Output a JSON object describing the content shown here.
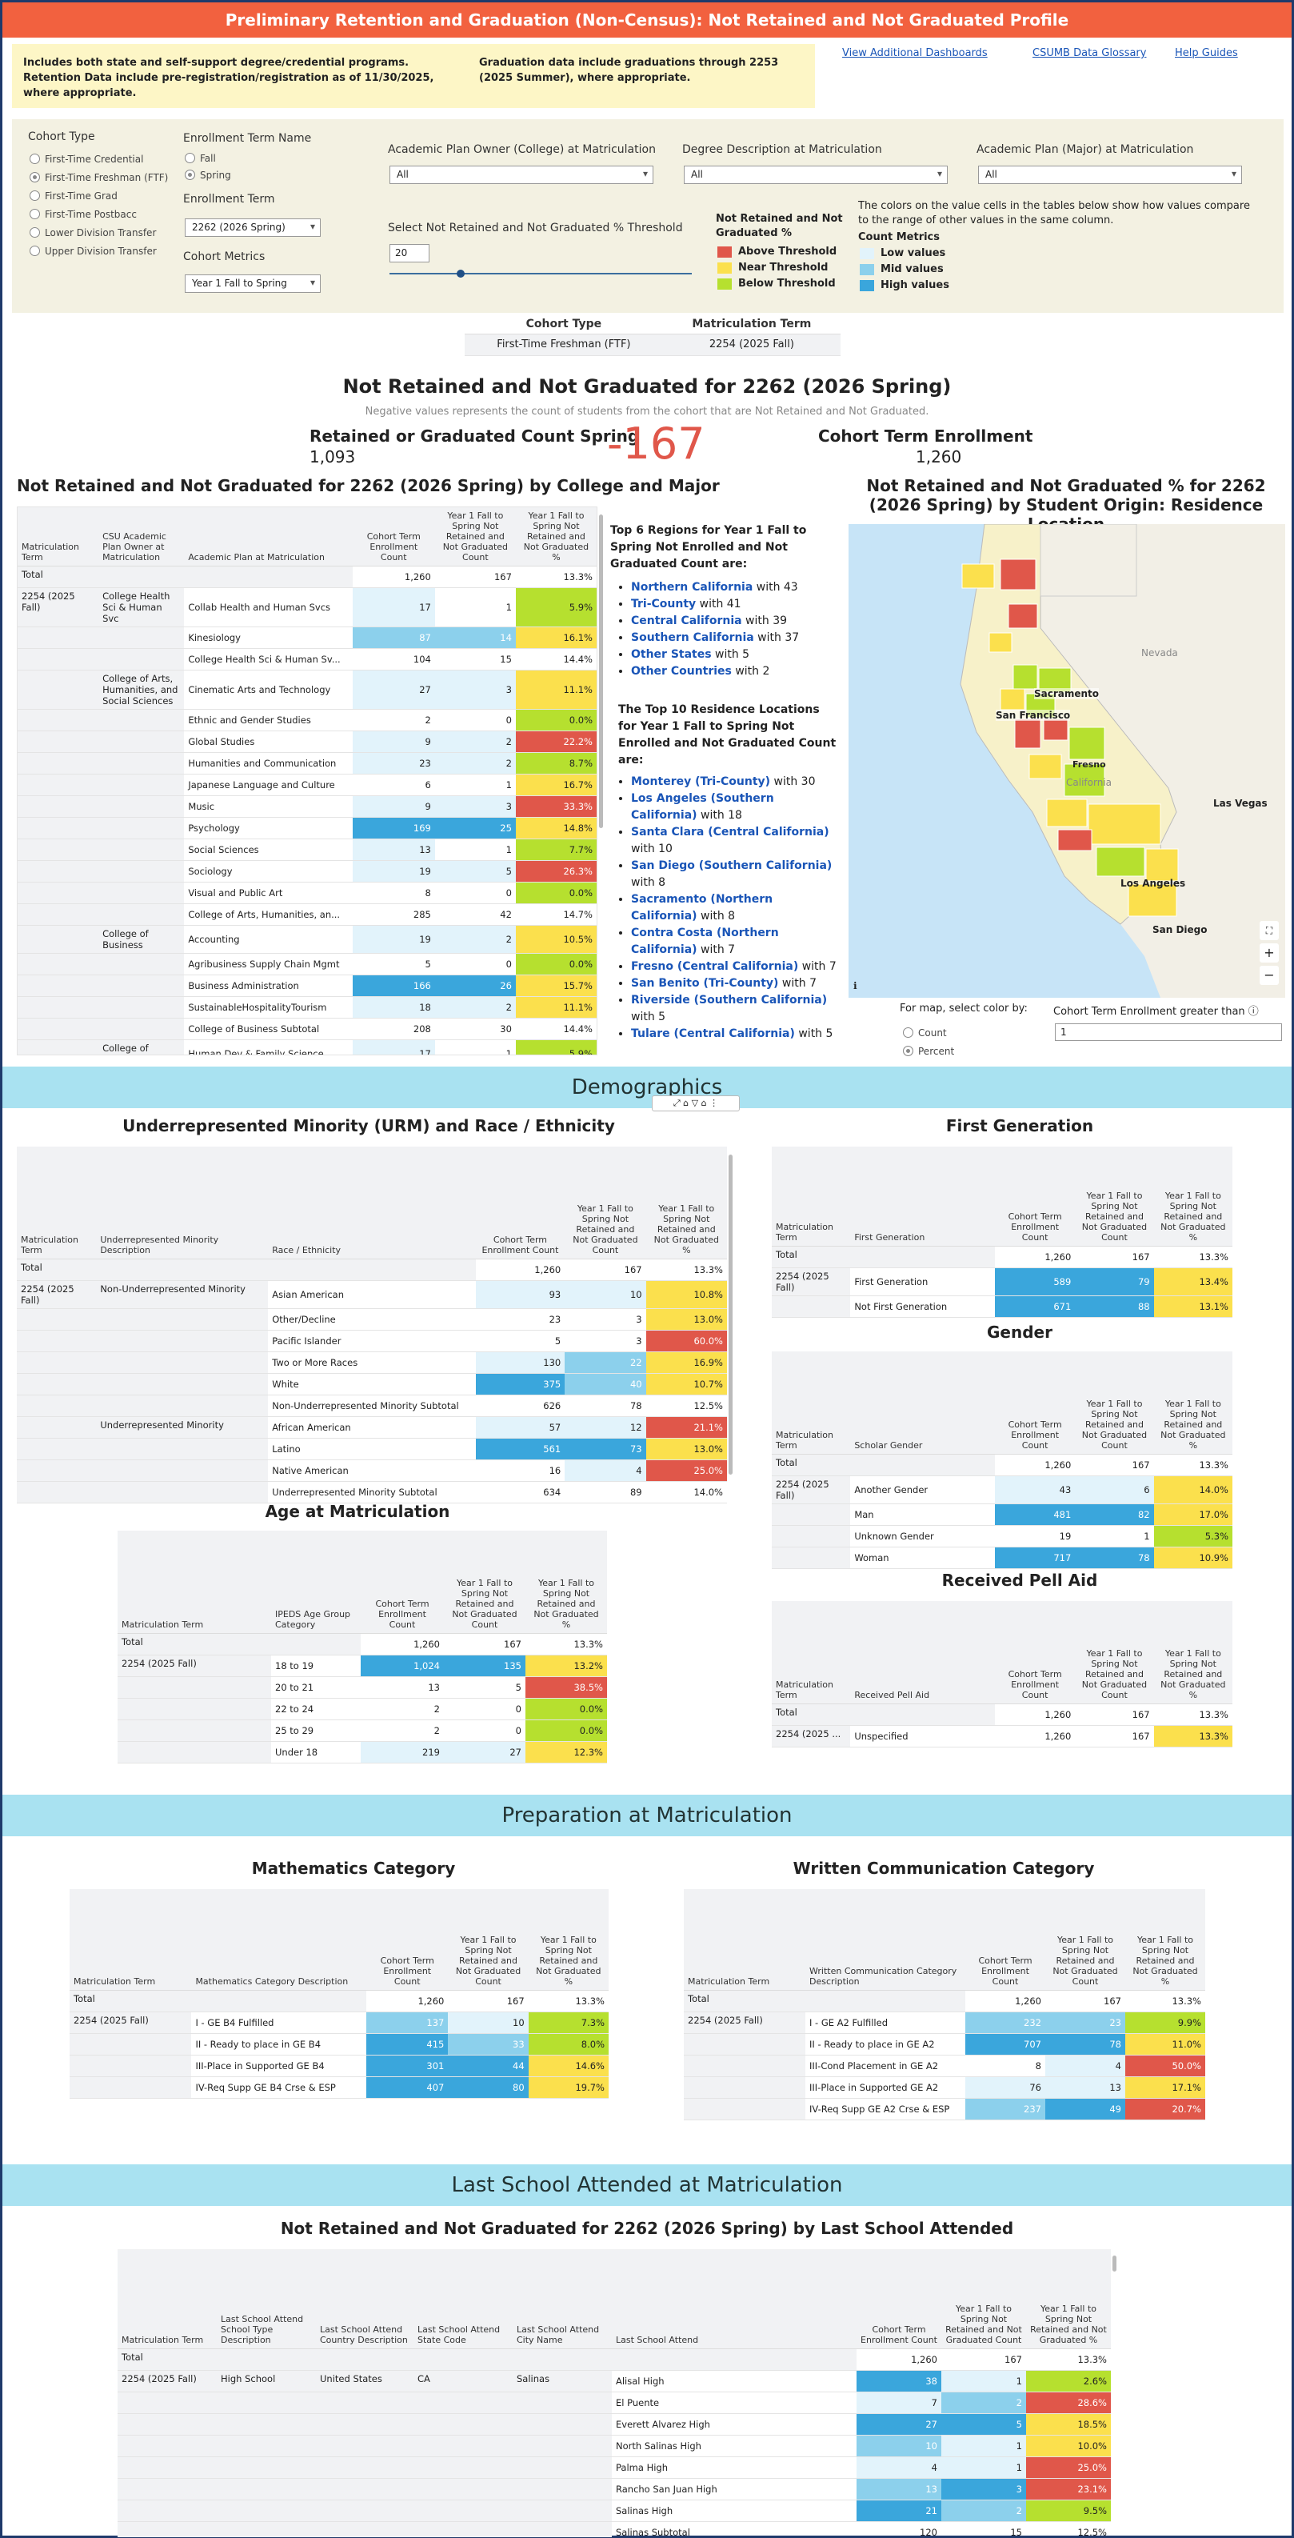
{
  "title": "Preliminary Retention and Graduation (Non-Census): Not Retained and Not Graduated Profile",
  "notes": {
    "left": "Includes both state and self-support degree/credential programs. Retention Data include pre-registration/registration as of 11/30/2025, where appropriate.",
    "right": "Graduation data include graduations through 2253 (2025 Summer), where appropriate."
  },
  "links": [
    "View Additional Dashboards",
    "CSUMB Data Glossary",
    "Help Guides"
  ],
  "filters": {
    "cohort_type_label": "Cohort Type",
    "cohort_types": [
      "First-Time Credential",
      "First-Time Freshman (FTF)",
      "First-Time Grad",
      "First-Time Postbacc",
      "Lower Division Transfer",
      "Upper Division Transfer"
    ],
    "enroll_term_name_label": "Enrollment Term Name",
    "enroll_term_names": [
      "Fall",
      "Spring"
    ],
    "enroll_term_label": "Enrollment Term",
    "enroll_term": "2262 (2026 Spring)",
    "cohort_metrics_label": "Cohort Metrics",
    "cohort_metrics": "Year 1 Fall to Spring",
    "college_label": "Academic Plan Owner (College) at Matriculation",
    "college": "All",
    "degree_label": "Degree Description at Matriculation",
    "degree": "All",
    "major_label": "Academic Plan (Major) at Matriculation",
    "major": "All",
    "threshold_label": "Select Not Retained and Not Graduated % Threshold",
    "threshold": "20",
    "nrng_label": "Not Retained and Not Graduated %",
    "nrng_items": [
      "Above Threshold",
      "Near Threshold",
      "Below Threshold"
    ],
    "colors_note": "The colors on the value cells in the tables below show how values compare to the range of other values in the same column.",
    "count_metrics": "Count Metrics",
    "count_items": [
      "Low values",
      "Mid values",
      "High values"
    ]
  },
  "cohort_table": {
    "h1": "Cohort Type",
    "h2": "Matriculation Term",
    "v1": "First-Time Freshman (FTF)",
    "v2": "2254 (2025 Fall)"
  },
  "kpi": {
    "title": "Not Retained and Not Graduated for 2262 (2026 Spring)",
    "sub": "Negative values represents the count of students from the cohort that are Not Retained and Not Graduated.",
    "ret_label": "Retained or Graduated Count Spring",
    "ret_value": "1,093",
    "big": "-167",
    "enr_label": "Cohort Term Enrollment",
    "enr_value": "1,260"
  },
  "college_title": "Not Retained and Not Graduated for 2262 (2026 Spring) by College and Major",
  "col_hdr": [
    "Matriculation Term",
    "CSU Academic Plan Owner at Matriculation",
    "Academic Plan at Matriculation",
    "Cohort Term Enrollment Count",
    "Year 1 Fall to Spring Not Retained and Not Graduated Count",
    "Year 1 Fall to Spring Not Retained and Not Graduated %"
  ],
  "college_rows": [
    [
      "Total",
      "",
      "",
      "1,260",
      "167",
      "13.3%"
    ],
    [
      "2254 (2025 Fall)",
      "College Health Sci & Human Svc",
      "Collab Health and Human Svcs",
      "17",
      "1",
      "5.9%"
    ],
    [
      "",
      "",
      "Kinesiology",
      "87",
      "14",
      "16.1%"
    ],
    [
      "",
      "",
      "College Health Sci & Human Sv...",
      "104",
      "15",
      "14.4%"
    ],
    [
      "",
      "College of Arts, Humanities, and Social Sciences",
      "Cinematic Arts and Technology",
      "27",
      "3",
      "11.1%"
    ],
    [
      "",
      "",
      "Ethnic and Gender Studies",
      "2",
      "0",
      "0.0%"
    ],
    [
      "",
      "",
      "Global Studies",
      "9",
      "2",
      "22.2%"
    ],
    [
      "",
      "",
      "Humanities and Communication",
      "23",
      "2",
      "8.7%"
    ],
    [
      "",
      "",
      "Japanese Language and Culture",
      "6",
      "1",
      "16.7%"
    ],
    [
      "",
      "",
      "Music",
      "9",
      "3",
      "33.3%"
    ],
    [
      "",
      "",
      "Psychology",
      "169",
      "25",
      "14.8%"
    ],
    [
      "",
      "",
      "Social Sciences",
      "13",
      "1",
      "7.7%"
    ],
    [
      "",
      "",
      "Sociology",
      "19",
      "5",
      "26.3%"
    ],
    [
      "",
      "",
      "Visual and Public Art",
      "8",
      "0",
      "0.0%"
    ],
    [
      "",
      "",
      "College of Arts, Humanities, an...",
      "285",
      "42",
      "14.7%"
    ],
    [
      "",
      "College of Business",
      "Accounting",
      "19",
      "2",
      "10.5%"
    ],
    [
      "",
      "",
      "Agribusiness Supply Chain Mgmt",
      "5",
      "0",
      "0.0%"
    ],
    [
      "",
      "",
      "Business Administration",
      "166",
      "26",
      "15.7%"
    ],
    [
      "",
      "",
      "SustainableHospitalityTourism",
      "18",
      "2",
      "11.1%"
    ],
    [
      "",
      "",
      "College of Business Subtotal",
      "208",
      "30",
      "14.4%"
    ],
    [
      "",
      "College of Education",
      "Human Dev & Family Science",
      "17",
      "1",
      "5.9%"
    ]
  ],
  "regions": {
    "head": "Top 6 Regions for Year 1 Fall to Spring Not Enrolled and Not Graduated Count are:",
    "items": [
      [
        "Northern California",
        " with 43"
      ],
      [
        "Tri-County",
        " with 41"
      ],
      [
        "Central California",
        " with 39"
      ],
      [
        "Southern California",
        " with 37"
      ],
      [
        "Other States",
        " with 5"
      ],
      [
        "Other Countries",
        " with 2"
      ]
    ]
  },
  "locations": {
    "head": "The Top 10 Residence Locations for Year 1 Fall to Spring Not Enrolled and Not Graduated Count are:",
    "items": [
      [
        "Monterey (Tri-County)",
        " with 30"
      ],
      [
        "Los Angeles (Southern California)",
        " with 18"
      ],
      [
        "Santa Clara (Central California)",
        " with 10"
      ],
      [
        "San Diego (Southern California)",
        " with 8"
      ],
      [
        "Sacramento (Northern California)",
        " with 8"
      ],
      [
        "Contra Costa (Northern California)",
        " with 7"
      ],
      [
        "Fresno (Central California)",
        " with 7"
      ],
      [
        "San Benito (Tri-County)",
        " with 7"
      ],
      [
        "Riverside (Southern California)",
        " with 5"
      ],
      [
        "Tulare (Central California)",
        " with 5"
      ]
    ]
  },
  "map": {
    "title": "Not Retained and Not Graduated % for 2262 (2026 Spring) by Student Origin: Residence Location",
    "cities": [
      "Sacramento",
      "San Francisco",
      "Fresno",
      "California",
      "Nevada",
      "Las Vegas",
      "Los Angeles",
      "San Diego"
    ],
    "color_by": "For map, select color by:",
    "opts": [
      "Count",
      "Percent"
    ],
    "enr_gt": "Cohort Term Enrollment greater than",
    "enr_gt_val": "1"
  },
  "demo": "Demographics",
  "urm": {
    "title": "Underrepresented Minority (URM) and Race / Ethnicity",
    "hdr": [
      "Matriculation Term",
      "Underrepresented Minority Description",
      "Race / Ethnicity",
      "Cohort Term Enrollment Count",
      "Year 1 Fall to Spring Not Retained and Not Graduated Count",
      "Year 1 Fall to Spring Not Retained and Not Graduated %"
    ],
    "rows": [
      [
        "Total",
        "",
        "",
        "1,260",
        "167",
        "13.3%"
      ],
      [
        "2254 (2025 Fall)",
        "Non-Underrepresented Minority",
        "Asian American",
        "93",
        "10",
        "10.8%"
      ],
      [
        "",
        "",
        "Other/Decline",
        "23",
        "3",
        "13.0%"
      ],
      [
        "",
        "",
        "Pacific Islander",
        "5",
        "3",
        "60.0%"
      ],
      [
        "",
        "",
        "Two or More Races",
        "130",
        "22",
        "16.9%"
      ],
      [
        "",
        "",
        "White",
        "375",
        "40",
        "10.7%"
      ],
      [
        "",
        "",
        "Non-Underrepresented Minority Subtotal",
        "626",
        "78",
        "12.5%"
      ],
      [
        "",
        "Underrepresented Minority",
        "African American",
        "57",
        "12",
        "21.1%"
      ],
      [
        "",
        "",
        "Latino",
        "561",
        "73",
        "13.0%"
      ],
      [
        "",
        "",
        "Native American",
        "16",
        "4",
        "25.0%"
      ],
      [
        "",
        "",
        "Underrepresented Minority Subtotal",
        "634",
        "89",
        "14.0%"
      ]
    ]
  },
  "firstgen": {
    "title": "First Generation",
    "hdr": [
      "Matriculation Term",
      "First Generation",
      "Cohort Term Enrollment Count",
      "Year 1 Fall to Spring Not Retained and Not Graduated Count",
      "Year 1 Fall to Spring Not Retained and Not Graduated %"
    ],
    "rows": [
      [
        "Total",
        "",
        "1,260",
        "167",
        "13.3%"
      ],
      [
        "2254 (2025 Fall)",
        "First Generation",
        "589",
        "79",
        "13.4%"
      ],
      [
        "",
        "Not First Generation",
        "671",
        "88",
        "13.1%"
      ]
    ]
  },
  "gender": {
    "title": "Gender",
    "hdr": [
      "Matriculation Term",
      "Scholar Gender",
      "Cohort Term Enrollment Count",
      "Year 1 Fall to Spring Not Retained and Not Graduated Count",
      "Year 1 Fall to Spring Not Retained and Not Graduated %"
    ],
    "rows": [
      [
        "Total",
        "",
        "1,260",
        "167",
        "13.3%"
      ],
      [
        "2254 (2025 Fall)",
        "Another Gender",
        "43",
        "6",
        "14.0%"
      ],
      [
        "",
        "Man",
        "481",
        "82",
        "17.0%"
      ],
      [
        "",
        "Unknown Gender",
        "19",
        "1",
        "5.3%"
      ],
      [
        "",
        "Woman",
        "717",
        "78",
        "10.9%"
      ]
    ]
  },
  "age": {
    "title": "Age at Matriculation",
    "hdr": [
      "Matriculation Term",
      "IPEDS Age Group Category",
      "Cohort Term Enrollment Count",
      "Year 1 Fall to Spring Not Retained and Not Graduated Count",
      "Year 1 Fall to Spring Not Retained and Not Graduated %"
    ],
    "rows": [
      [
        "Total",
        "",
        "1,260",
        "167",
        "13.3%"
      ],
      [
        "2254 (2025 Fall)",
        "18 to 19",
        "1,024",
        "135",
        "13.2%"
      ],
      [
        "",
        "20 to 21",
        "13",
        "5",
        "38.5%"
      ],
      [
        "",
        "22 to 24",
        "2",
        "0",
        "0.0%"
      ],
      [
        "",
        "25 to 29",
        "2",
        "0",
        "0.0%"
      ],
      [
        "",
        "Under 18",
        "219",
        "27",
        "12.3%"
      ]
    ]
  },
  "pell": {
    "title": "Received Pell Aid",
    "hdr": [
      "Matriculation Term",
      "Received Pell Aid",
      "Cohort Term Enrollment Count",
      "Year 1 Fall to Spring Not Retained and Not Graduated Count",
      "Year 1 Fall to Spring Not Retained and Not Graduated %"
    ],
    "rows": [
      [
        "Total",
        "",
        "1,260",
        "167",
        "13.3%"
      ],
      [
        "2254 (2025 ...",
        "Unspecified",
        "1,260",
        "167",
        "13.3%"
      ]
    ]
  },
  "prep": "Preparation at Matriculation",
  "math": {
    "title": "Mathematics Category",
    "hdr": [
      "Matriculation Term",
      "Mathematics Category Description",
      "Cohort Term Enrollment Count",
      "Year 1 Fall to Spring Not Retained and Not Graduated Count",
      "Year 1 Fall to Spring Not Retained and Not Graduated %"
    ],
    "rows": [
      [
        "Total",
        "",
        "1,260",
        "167",
        "13.3%"
      ],
      [
        "2254 (2025 Fall)",
        "I - GE B4 Fulfilled",
        "137",
        "10",
        "7.3%"
      ],
      [
        "",
        "II - Ready to place in GE B4",
        "415",
        "33",
        "8.0%"
      ],
      [
        "",
        "III-Place in Supported GE B4",
        "301",
        "44",
        "14.6%"
      ],
      [
        "",
        "IV-Req Supp GE B4 Crse & ESP",
        "407",
        "80",
        "19.7%"
      ]
    ]
  },
  "written": {
    "title": "Written Communication Category",
    "hdr": [
      "Matriculation Term",
      "Written Communication Category Description",
      "Cohort Term Enrollment Count",
      "Year 1 Fall to Spring Not Retained and Not Graduated Count",
      "Year 1 Fall to Spring Not Retained and Not Graduated %"
    ],
    "rows": [
      [
        "Total",
        "",
        "1,260",
        "167",
        "13.3%"
      ],
      [
        "2254 (2025 Fall)",
        "I - GE A2 Fulfilled",
        "232",
        "23",
        "9.9%"
      ],
      [
        "",
        "II - Ready to place in GE A2",
        "707",
        "78",
        "11.0%"
      ],
      [
        "",
        "III-Cond Placement in GE A2",
        "8",
        "4",
        "50.0%"
      ],
      [
        "",
        "III-Place in Supported GE A2",
        "76",
        "13",
        "17.1%"
      ],
      [
        "",
        "IV-Req Supp GE A2 Crse & ESP",
        "237",
        "49",
        "20.7%"
      ]
    ]
  },
  "lastschool": "Last School Attended at Matriculation",
  "ls": {
    "title": "Not Retained and Not Graduated for 2262 (2026 Spring) by Last School Attended",
    "hdr": [
      "Matriculation Term",
      "Last School Attend School Type Description",
      "Last School Attend Country Description",
      "Last School Attend State Code",
      "Last School Attend City Name",
      "Last School Attend",
      "Cohort Term Enrollment Count",
      "Year 1 Fall to Spring Not Retained and Not Graduated Count",
      "Year 1 Fall to Spring Not Retained and Not Graduated %"
    ],
    "rows": [
      [
        "Total",
        "",
        "",
        "",
        "",
        "",
        "1,260",
        "167",
        "13.3%"
      ],
      [
        "2254 (2025 Fall)",
        "High School",
        "United States",
        "CA",
        "Salinas",
        "Alisal High",
        "38",
        "1",
        "2.6%"
      ],
      [
        "",
        "",
        "",
        "",
        "",
        "El Puente",
        "7",
        "2",
        "28.6%"
      ],
      [
        "",
        "",
        "",
        "",
        "",
        "Everett Alvarez High",
        "27",
        "5",
        "18.5%"
      ],
      [
        "",
        "",
        "",
        "",
        "",
        "North Salinas High",
        "10",
        "1",
        "10.0%"
      ],
      [
        "",
        "",
        "",
        "",
        "",
        "Palma High",
        "4",
        "1",
        "25.0%"
      ],
      [
        "",
        "",
        "",
        "",
        "",
        "Rancho San Juan High",
        "13",
        "3",
        "23.1%"
      ],
      [
        "",
        "",
        "",
        "",
        "",
        "Salinas High",
        "21",
        "2",
        "9.5%"
      ],
      [
        "",
        "",
        "",
        "",
        "",
        "Salinas Subtotal",
        "120",
        "15",
        "12.5%"
      ]
    ]
  }
}
